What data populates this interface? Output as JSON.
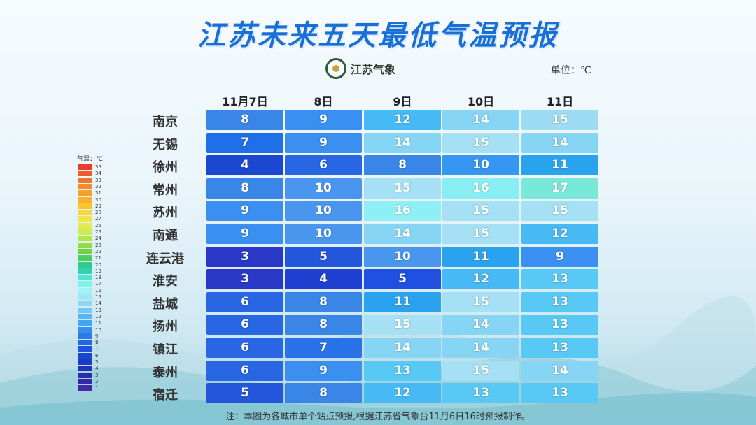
{
  "title": "江苏未来五天最低气温预报",
  "logo_text": "江苏气象",
  "unit_label": "单位：℃",
  "note": "注：本图为各城市单个站点预报,根据江苏省气象台11月6日16时预报制作。",
  "legend_title": "气温：℃",
  "legend": {
    "labels": [
      "35",
      "34",
      "33",
      "32",
      "31",
      "30",
      "29",
      "28",
      "27",
      "26",
      "25",
      "24",
      "23",
      "22",
      "21",
      "20",
      "19",
      "18",
      "17",
      "16",
      "15",
      "14",
      "13",
      "12",
      "11",
      "10",
      "9",
      "8",
      "7",
      "6",
      "5",
      "4",
      "3",
      "2",
      "1"
    ],
    "colors": [
      "#ea3b2c",
      "#ef5b2a",
      "#f2752a",
      "#f58a2a",
      "#f79f2a",
      "#f7b22b",
      "#f8c52e",
      "#f7d83a",
      "#f1e14a",
      "#e4e956",
      "#cdeb53",
      "#b3e64d",
      "#93dc45",
      "#6fd143",
      "#4ccf5f",
      "#32c98b",
      "#2fd3b0",
      "#52e2d0",
      "#7df2ea",
      "#a0f3f2",
      "#a6e3f3",
      "#8fd5f5",
      "#74c7f4",
      "#58b6f4",
      "#43a4f2",
      "#358ef0",
      "#2a7aec",
      "#2266e6",
      "#1e54dc",
      "#1b46cf",
      "#1e3cc3",
      "#2332b7",
      "#2a2cae",
      "#3528a8",
      "#4526a8"
    ]
  },
  "chart_data": {
    "type": "heatmap",
    "title": "江苏未来五天最低气温预报",
    "unit": "℃",
    "columns": [
      "11月7日",
      "8日",
      "9日",
      "10日",
      "11日"
    ],
    "rows": [
      "南京",
      "无锡",
      "徐州",
      "常州",
      "苏州",
      "南通",
      "连云港",
      "淮安",
      "盐城",
      "扬州",
      "镇江",
      "泰州",
      "宿迁"
    ],
    "values": [
      [
        8,
        9,
        12,
        14,
        15
      ],
      [
        7,
        9,
        14,
        15,
        14
      ],
      [
        4,
        6,
        8,
        10,
        11
      ],
      [
        8,
        10,
        15,
        16,
        17
      ],
      [
        9,
        10,
        16,
        15,
        15
      ],
      [
        9,
        10,
        14,
        15,
        12
      ],
      [
        3,
        5,
        10,
        11,
        9
      ],
      [
        3,
        4,
        5,
        12,
        13
      ],
      [
        6,
        8,
        11,
        15,
        13
      ],
      [
        6,
        8,
        15,
        14,
        13
      ],
      [
        6,
        7,
        14,
        14,
        13
      ],
      [
        6,
        9,
        13,
        15,
        14
      ],
      [
        5,
        8,
        12,
        13,
        13
      ]
    ],
    "cell_colors": [
      [
        "#3a86e6",
        "#3a8ff0",
        "#47b9f4",
        "#86d5f4",
        "#9ddcf3"
      ],
      [
        "#1f6fe8",
        "#3a8ff0",
        "#86d5f4",
        "#a5e0f4",
        "#86d5f4"
      ],
      [
        "#1b46cf",
        "#2866e4",
        "#3a86e6",
        "#3597f0",
        "#2aa3ee"
      ],
      [
        "#3a86e6",
        "#4a96ee",
        "#a5e0f4",
        "#88eef2",
        "#7ae8d8"
      ],
      [
        "#3a8ff0",
        "#4a96ee",
        "#8ef0f4",
        "#a5e0f4",
        "#a5e0f4"
      ],
      [
        "#3a8ff0",
        "#4a96ee",
        "#86d5f4",
        "#a5e0f4",
        "#47b9f4"
      ],
      [
        "#2a38c8",
        "#2456dc",
        "#4a96ee",
        "#2aa3ee",
        "#3a8ff0"
      ],
      [
        "#2a38c8",
        "#1f3fd0",
        "#1f50df",
        "#47b9f4",
        "#58c8f4"
      ],
      [
        "#2866e4",
        "#3a86e6",
        "#2aa3ee",
        "#a5e0f4",
        "#58c8f4"
      ],
      [
        "#2866e4",
        "#3a86e6",
        "#a5e0f4",
        "#86d5f4",
        "#58c8f4"
      ],
      [
        "#2866e4",
        "#2a72e8",
        "#86d5f4",
        "#86d5f4",
        "#58c8f4"
      ],
      [
        "#2866e4",
        "#3a8ff0",
        "#58c8f4",
        "#a5e0f4",
        "#86d5f4"
      ],
      [
        "#2456dc",
        "#3a86e6",
        "#47b9f4",
        "#58c8f4",
        "#58c8f4"
      ]
    ]
  }
}
